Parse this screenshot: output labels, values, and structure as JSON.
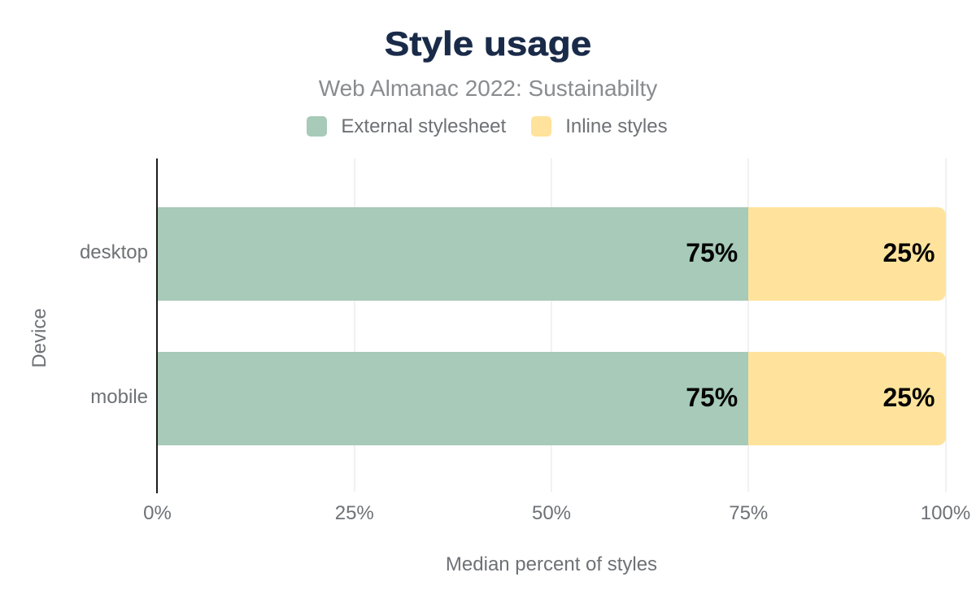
{
  "chart": {
    "title": "Style usage",
    "subtitle": "Web Almanac 2022: Sustainabilty",
    "xlabel": "Median percent of styles",
    "ylabel": "Device"
  },
  "colors": {
    "background": "#ffffff",
    "title_text": "#1a2b49",
    "subtitle_text": "#898c8f",
    "axis_text": "#6e7175",
    "data_label_text": "#050505",
    "axis_line": "#1c1c1c",
    "gridline": "#f1f1f2"
  },
  "chart_data": {
    "type": "bar",
    "orientation": "horizontal",
    "stacked": true,
    "title": "Style usage",
    "subtitle": "Web Almanac 2022: Sustainabilty",
    "xlabel": "Median percent of styles",
    "ylabel": "Device",
    "categories": [
      "desktop",
      "mobile"
    ],
    "series": [
      {
        "name": "External stylesheet",
        "color": "#a7cab9",
        "values": [
          75,
          75
        ]
      },
      {
        "name": "Inline styles",
        "color": "#ffe39c",
        "values": [
          25,
          25
        ]
      }
    ],
    "data_labels": [
      [
        "75%",
        "25%"
      ],
      [
        "75%",
        "25%"
      ]
    ],
    "xlim": [
      0,
      100
    ],
    "xticks": [
      {
        "value": 0,
        "label": "0%"
      },
      {
        "value": 25,
        "label": "25%"
      },
      {
        "value": 50,
        "label": "50%"
      },
      {
        "value": 75,
        "label": "75%"
      },
      {
        "value": 100,
        "label": "100%"
      }
    ],
    "grid": "vertical",
    "legend_position": "top"
  }
}
